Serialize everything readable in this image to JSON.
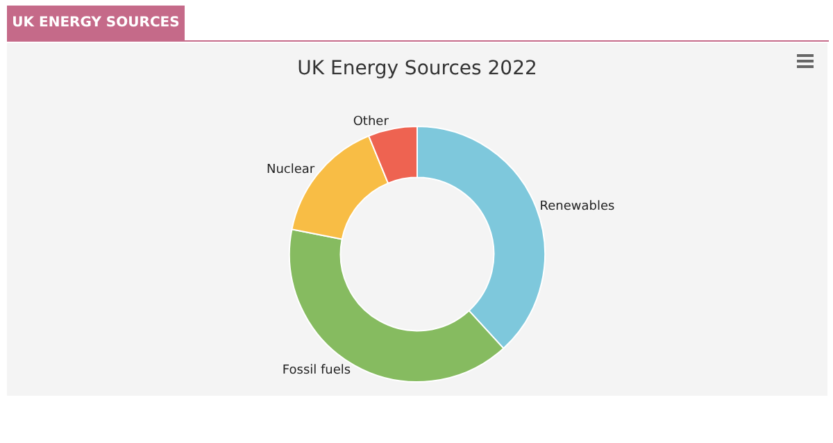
{
  "chart_data": {
    "type": "donut",
    "title": "UK Energy Sources 2022",
    "annotations": [
      "UK ENERGY SOURCES"
    ],
    "categories": [
      "Renewables",
      "Fossil fuels",
      "Nuclear",
      "Other"
    ],
    "values": [
      38.2,
      39.9,
      15.7,
      6.2
    ],
    "colors": [
      "#7ec8dc",
      "#86bb60",
      "#f8bd45",
      "#ee6351"
    ],
    "legend": false
  }
}
